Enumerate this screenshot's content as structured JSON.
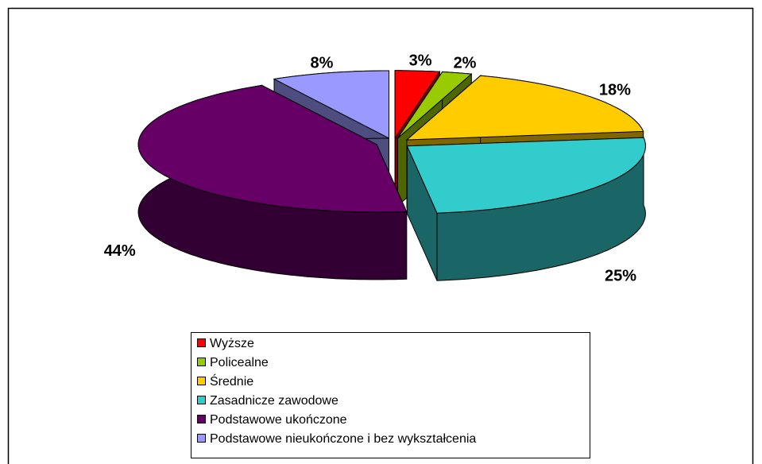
{
  "chart_data": {
    "type": "pie3d",
    "categories": [
      "Wyższe",
      "Policealne",
      "Średnie",
      "Zasadnicze zawodowe",
      "Podstawowe ukończone",
      "Podstawowe nieukończone i bez wykształcenia"
    ],
    "values": [
      3,
      2,
      18,
      25,
      44,
      8
    ],
    "value_labels": [
      "3%",
      "2%",
      "18%",
      "25%",
      "44%",
      "8%"
    ],
    "colors": [
      "#ff0000",
      "#99cc00",
      "#ffcc00",
      "#33cccc",
      "#660066",
      "#9999ff"
    ],
    "legend": "bottom"
  }
}
